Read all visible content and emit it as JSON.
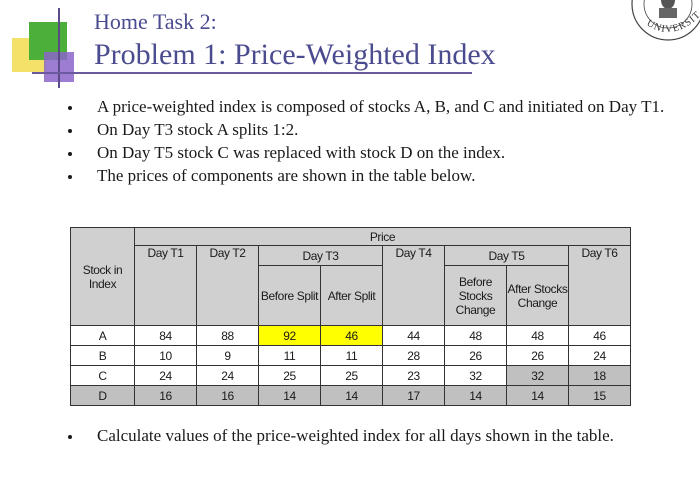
{
  "slide": {
    "subtitle": "Home Task 2:",
    "title": "Problem 1: Price-Weighted Index",
    "seal_text": "UNIVERSITY"
  },
  "bullets": [
    "A price-weighted index is composed of stocks A, B, and C and initiated on Day T1.",
    "On Day T3 stock A splits 1:2.",
    "On Day T5 stock C was replaced with stock D on the index.",
    "The prices of components are shown in the table below."
  ],
  "table": {
    "group_header": "Price",
    "stock_header": "Stock in Index",
    "days": {
      "t1": "Day T1",
      "t2": "Day T2",
      "t3": "Day T3",
      "t4": "Day T4",
      "t5": "Day T5",
      "t6": "Day T6"
    },
    "sub": {
      "before_split": "Before Split",
      "after_split": "After Split",
      "before_change": "Before Stocks Change",
      "after_change": "After Stocks Change"
    },
    "rows": [
      {
        "stock": "A",
        "t1": "84",
        "t2": "88",
        "t3b": "92",
        "t3a": "46",
        "t4": "44",
        "t5b": "48",
        "t5a": "48",
        "t6": "46"
      },
      {
        "stock": "B",
        "t1": "10",
        "t2": "9",
        "t3b": "11",
        "t3a": "11",
        "t4": "28",
        "t5b": "26",
        "t5a": "26",
        "t6": "24"
      },
      {
        "stock": "C",
        "t1": "24",
        "t2": "24",
        "t3b": "25",
        "t3a": "25",
        "t4": "23",
        "t5b": "32",
        "t5a": "32",
        "t6": "18"
      },
      {
        "stock": "D",
        "t1": "16",
        "t2": "16",
        "t3b": "14",
        "t3a": "14",
        "t4": "17",
        "t5b": "14",
        "t5a": "14",
        "t6": "15"
      }
    ],
    "highlight_color": "#ffff00",
    "shade_color": "#c0c0c0"
  },
  "footer_bullet": "Calculate values of the price-weighted index for all days shown in the table."
}
